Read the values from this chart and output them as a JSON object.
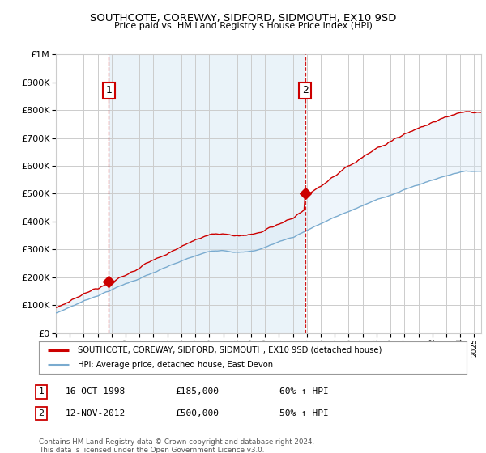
{
  "title": "SOUTHCOTE, COREWAY, SIDFORD, SIDMOUTH, EX10 9SD",
  "subtitle": "Price paid vs. HM Land Registry's House Price Index (HPI)",
  "legend_line1": "SOUTHCOTE, COREWAY, SIDFORD, SIDMOUTH, EX10 9SD (detached house)",
  "legend_line2": "HPI: Average price, detached house, East Devon",
  "footnote": "Contains HM Land Registry data © Crown copyright and database right 2024.\nThis data is licensed under the Open Government Licence v3.0.",
  "annotation1": {
    "num": "1",
    "date": "16-OCT-1998",
    "price": "£185,000",
    "hpi": "60% ↑ HPI"
  },
  "annotation2": {
    "num": "2",
    "date": "12-NOV-2012",
    "price": "£500,000",
    "hpi": "50% ↑ HPI"
  },
  "sale1_x": 1998.79,
  "sale1_y": 185000,
  "sale2_x": 2012.87,
  "sale2_y": 500000,
  "red_color": "#cc0000",
  "blue_color": "#7aabcf",
  "fill_color": "#d6e8f5",
  "background_color": "#ffffff",
  "grid_color": "#cccccc",
  "ylim": [
    0,
    1000000
  ],
  "xlim": [
    1995,
    2025.5
  ]
}
